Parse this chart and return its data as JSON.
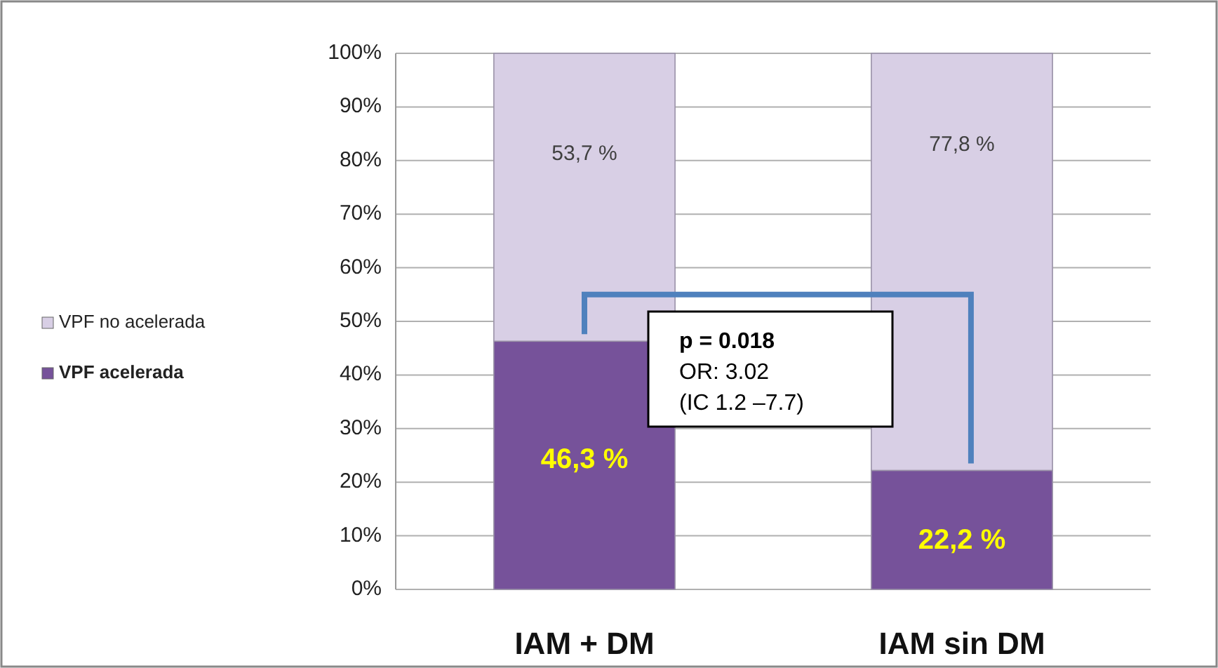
{
  "chart_data": {
    "type": "bar",
    "stacked": true,
    "categories": [
      "IAM + DM",
      "IAM sin DM"
    ],
    "series": [
      {
        "name": "VPF acelerada",
        "color": "#76529a",
        "values": [
          46.3,
          22.2
        ],
        "value_labels": [
          "46,3 %",
          "22,2 %"
        ]
      },
      {
        "name": "VPF no acelerada",
        "color": "#d8cfe5",
        "values": [
          53.7,
          77.8
        ],
        "value_labels": [
          "53,7 %",
          "77,8 %"
        ]
      }
    ],
    "ylim": [
      0,
      100
    ],
    "yticks": [
      {
        "value": 0,
        "label": "0%"
      },
      {
        "value": 10,
        "label": "10%"
      },
      {
        "value": 20,
        "label": "20%"
      },
      {
        "value": 30,
        "label": "30%"
      },
      {
        "value": 40,
        "label": "40%"
      },
      {
        "value": 50,
        "label": "50%"
      },
      {
        "value": 60,
        "label": "60%"
      },
      {
        "value": 70,
        "label": "70%"
      },
      {
        "value": 80,
        "label": "80%"
      },
      {
        "value": 90,
        "label": "90%"
      },
      {
        "value": 100,
        "label": "100%"
      }
    ],
    "grid": "y",
    "legend": "left",
    "annotations": [
      "p = 0.018",
      "OR: 3.02",
      "(IC 1.2 –7.7)"
    ]
  }
}
